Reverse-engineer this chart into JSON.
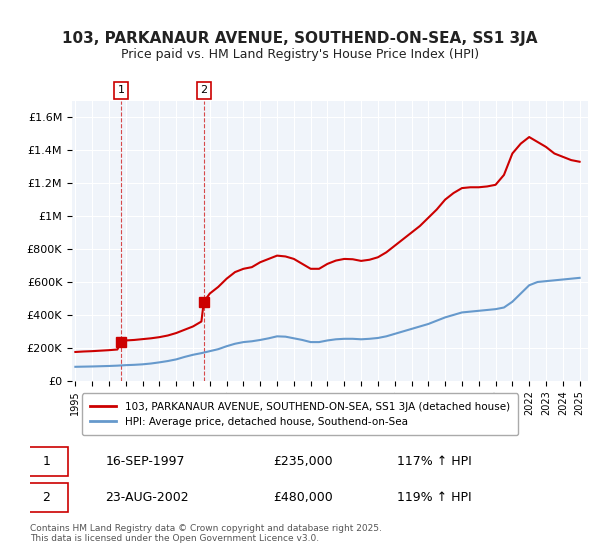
{
  "title": "103, PARKANAUR AVENUE, SOUTHEND-ON-SEA, SS1 3JA",
  "subtitle": "Price paid vs. HM Land Registry's House Price Index (HPI)",
  "xlabel": "",
  "ylabel": "",
  "background_color": "#ffffff",
  "plot_bg_color": "#f0f4fa",
  "grid_color": "#ffffff",
  "legend_entry1": "103, PARKANAUR AVENUE, SOUTHEND-ON-SEA, SS1 3JA (detached house)",
  "legend_entry2": "HPI: Average price, detached house, Southend-on-Sea",
  "sale1_date": "16-SEP-1997",
  "sale1_price": 235000,
  "sale1_hpi": "117% ↑ HPI",
  "sale2_date": "23-AUG-2002",
  "sale2_price": 480000,
  "sale2_hpi": "119% ↑ HPI",
  "footer": "Contains HM Land Registry data © Crown copyright and database right 2025.\nThis data is licensed under the Open Government Licence v3.0.",
  "house_color": "#cc0000",
  "hpi_color": "#6699cc",
  "marker_color": "#cc0000",
  "sale1_x": 1997.71,
  "sale2_x": 2002.64,
  "ylim_max": 1700000,
  "ylim_min": 0,
  "hpi_years": [
    1995,
    1995.5,
    1996,
    1996.5,
    1997,
    1997.5,
    1998,
    1998.5,
    1999,
    1999.5,
    2000,
    2000.5,
    2001,
    2001.5,
    2002,
    2002.5,
    2003,
    2003.5,
    2004,
    2004.5,
    2005,
    2005.5,
    2006,
    2006.5,
    2007,
    2007.5,
    2008,
    2008.5,
    2009,
    2009.5,
    2010,
    2010.5,
    2011,
    2011.5,
    2012,
    2012.5,
    2013,
    2013.5,
    2014,
    2014.5,
    2015,
    2015.5,
    2016,
    2016.5,
    2017,
    2017.5,
    2018,
    2018.5,
    2019,
    2019.5,
    2020,
    2020.5,
    2021,
    2021.5,
    2022,
    2022.5,
    2023,
    2023.5,
    2024,
    2024.5,
    2025
  ],
  "hpi_values": [
    85000,
    86000,
    87000,
    88500,
    90000,
    92000,
    95000,
    97000,
    100000,
    105000,
    112000,
    120000,
    130000,
    145000,
    158000,
    168000,
    180000,
    192000,
    210000,
    225000,
    235000,
    240000,
    248000,
    258000,
    270000,
    268000,
    258000,
    248000,
    235000,
    235000,
    245000,
    252000,
    255000,
    255000,
    252000,
    255000,
    260000,
    270000,
    285000,
    300000,
    315000,
    330000,
    345000,
    365000,
    385000,
    400000,
    415000,
    420000,
    425000,
    430000,
    435000,
    445000,
    480000,
    530000,
    580000,
    600000,
    605000,
    610000,
    615000,
    620000,
    625000
  ],
  "house_years": [
    1995,
    1995.5,
    1996,
    1996.5,
    1997,
    1997.5,
    1997.71,
    1998,
    1998.5,
    1999,
    1999.5,
    2000,
    2000.5,
    2001,
    2001.5,
    2002,
    2002.5,
    2002.64,
    2003,
    2003.5,
    2004,
    2004.5,
    2005,
    2005.5,
    2006,
    2006.5,
    2007,
    2007.5,
    2008,
    2008.5,
    2009,
    2009.5,
    2010,
    2010.5,
    2011,
    2011.5,
    2012,
    2012.5,
    2013,
    2013.5,
    2014,
    2014.5,
    2015,
    2015.5,
    2016,
    2016.5,
    2017,
    2017.5,
    2018,
    2018.5,
    2019,
    2019.5,
    2020,
    2020.5,
    2021,
    2021.5,
    2022,
    2022.5,
    2023,
    2023.5,
    2024,
    2024.5,
    2025
  ],
  "house_values": [
    175000,
    178000,
    180000,
    183000,
    186000,
    190000,
    235000,
    245000,
    248000,
    253000,
    258000,
    265000,
    275000,
    290000,
    310000,
    330000,
    360000,
    480000,
    530000,
    570000,
    620000,
    660000,
    680000,
    690000,
    720000,
    740000,
    760000,
    755000,
    740000,
    710000,
    680000,
    680000,
    710000,
    730000,
    740000,
    738000,
    728000,
    735000,
    750000,
    780000,
    820000,
    860000,
    900000,
    940000,
    990000,
    1040000,
    1100000,
    1140000,
    1170000,
    1175000,
    1175000,
    1180000,
    1190000,
    1250000,
    1380000,
    1440000,
    1480000,
    1450000,
    1420000,
    1380000,
    1360000,
    1340000,
    1330000
  ]
}
